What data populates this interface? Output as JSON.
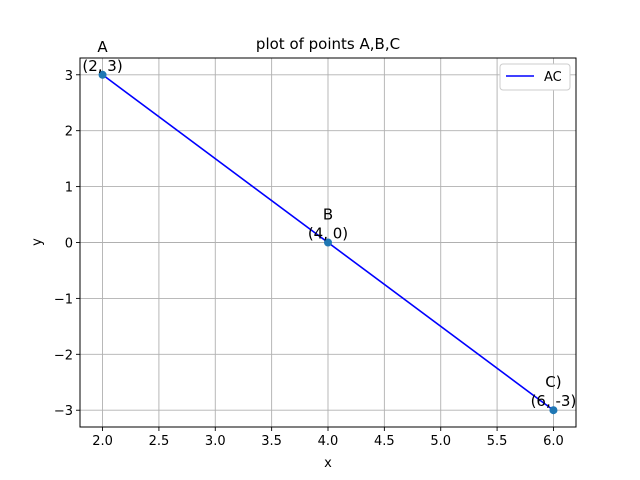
{
  "chart_data": {
    "type": "line",
    "title": "plot of points A,B,C",
    "xlabel": "x",
    "ylabel": "y",
    "xlim": [
      1.8,
      6.2
    ],
    "ylim": [
      -3.3,
      3.3
    ],
    "xticks": [
      "2.0",
      "2.5",
      "3.0",
      "3.5",
      "4.0",
      "4.5",
      "5.0",
      "5.5",
      "6.0"
    ],
    "xtick_values": [
      2.0,
      2.5,
      3.0,
      3.5,
      4.0,
      4.5,
      5.0,
      5.5,
      6.0
    ],
    "yticks": [
      "3",
      "2",
      "1",
      "0",
      "−1",
      "−2",
      "−3"
    ],
    "ytick_values": [
      3,
      2,
      1,
      0,
      -1,
      -2,
      -3
    ],
    "grid": true,
    "legend_position": "top-right",
    "series": [
      {
        "name": "AC",
        "x": [
          2,
          6
        ],
        "y": [
          3,
          -3
        ],
        "color": "#0000ff"
      }
    ],
    "points": [
      {
        "x": 2,
        "y": 3,
        "name": "A",
        "coord": "(2, 3)"
      },
      {
        "x": 4,
        "y": 0,
        "name": "B",
        "coord": "(4, 0)"
      },
      {
        "x": 6,
        "y": -3,
        "name": "C)",
        "coord": "(6, -3)"
      }
    ],
    "point_color": "#1f77b4"
  }
}
